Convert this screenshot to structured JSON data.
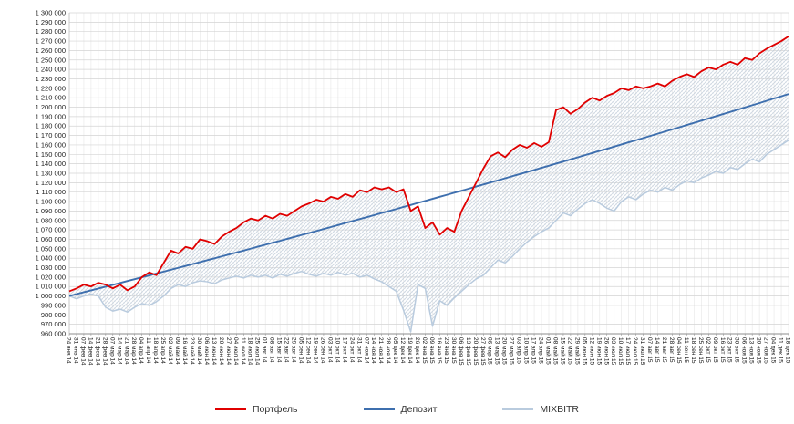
{
  "chart_data": {
    "type": "line",
    "title": "",
    "y_axis": {
      "min": 960000,
      "max": 1300000,
      "step": 10000,
      "tick_format": "space-grouped"
    },
    "grid": {
      "horizontal": true,
      "vertical": true
    },
    "legend": {
      "position": "bottom"
    },
    "band": {
      "upper": 0,
      "lower": 2,
      "style": "crosshatch",
      "color": "#c4cfda"
    },
    "x_labels": [
      "24 янв 14",
      "31 янв 14",
      "07 фев 14",
      "14 фев 14",
      "21 фев 14",
      "28 фев 14",
      "07 мар 14",
      "14 мар 14",
      "21 мар 14",
      "28 мар 14",
      "04 апр 14",
      "11 апр 14",
      "18 апр 14",
      "25 апр 14",
      "02 май 14",
      "09 май 14",
      "16 май 14",
      "23 май 14",
      "30 май 14",
      "06 июн 14",
      "13 июн 14",
      "20 июн 14",
      "27 июн 14",
      "04 июл 14",
      "11 июл 14",
      "18 июл 14",
      "25 июл 14",
      "01 авг 14",
      "08 авг 14",
      "15 авг 14",
      "22 авг 14",
      "29 авг 14",
      "05 сен 14",
      "12 сен 14",
      "19 сен 14",
      "26 сен 14",
      "03 окт 14",
      "10 окт 14",
      "17 окт 14",
      "24 окт 14",
      "31 окт 14",
      "07 ноя 14",
      "14 ноя 14",
      "21 ноя 14",
      "28 ноя 14",
      "05 дек 14",
      "12 дек 14",
      "19 дек 14",
      "26 дек 14",
      "02 янв 15",
      "09 янв 15",
      "16 янв 15",
      "23 янв 15",
      "30 янв 15",
      "06 фев 15",
      "13 фев 15",
      "20 фев 15",
      "27 фев 15",
      "06 мар 15",
      "13 мар 15",
      "20 мар 15",
      "27 мар 15",
      "03 апр 15",
      "10 апр 15",
      "17 апр 15",
      "24 апр 15",
      "01 май 15",
      "08 май 15",
      "15 май 15",
      "22 май 15",
      "29 май 15",
      "05 июн 15",
      "12 июн 15",
      "19 июн 15",
      "26 июн 15",
      "03 июл 15",
      "10 июл 15",
      "17 июл 15",
      "24 июл 15",
      "31 июл 15",
      "07 авг 15",
      "14 авг 15",
      "21 авг 15",
      "28 авг 15",
      "04 сен 15",
      "11 сен 15",
      "18 сен 15",
      "25 сен 15",
      "02 окт 15",
      "09 окт 15",
      "16 окт 15",
      "23 окт 15",
      "30 окт 15",
      "06 ноя 15",
      "13 ноя 15",
      "20 ноя 15",
      "27 ноя 15",
      "04 дек 15",
      "11 дек 15",
      "18 дек 15"
    ],
    "series": [
      {
        "name": "Портфель",
        "color": "#e00000",
        "values": [
          1005000,
          1008000,
          1012000,
          1010000,
          1014000,
          1012000,
          1008000,
          1012000,
          1006000,
          1010000,
          1020000,
          1025000,
          1022000,
          1035000,
          1048000,
          1045000,
          1052000,
          1050000,
          1060000,
          1058000,
          1055000,
          1063000,
          1068000,
          1072000,
          1078000,
          1082000,
          1080000,
          1085000,
          1082000,
          1087000,
          1085000,
          1090000,
          1095000,
          1098000,
          1102000,
          1100000,
          1105000,
          1103000,
          1108000,
          1105000,
          1112000,
          1110000,
          1115000,
          1113000,
          1115000,
          1110000,
          1113000,
          1090000,
          1095000,
          1072000,
          1078000,
          1065000,
          1072000,
          1068000,
          1090000,
          1105000,
          1120000,
          1135000,
          1148000,
          1152000,
          1147000,
          1155000,
          1160000,
          1157000,
          1162000,
          1158000,
          1163000,
          1197000,
          1200000,
          1193000,
          1198000,
          1205000,
          1210000,
          1207000,
          1212000,
          1215000,
          1220000,
          1218000,
          1222000,
          1220000,
          1222000,
          1225000,
          1222000,
          1228000,
          1232000,
          1235000,
          1232000,
          1238000,
          1242000,
          1240000,
          1245000,
          1248000,
          1245000,
          1252000,
          1250000,
          1257000,
          1262000,
          1266000,
          1270000,
          1275000
        ]
      },
      {
        "name": "Депозит",
        "color": "#3e6fae",
        "values": [
          1000000,
          1002000,
          1004000,
          1005900,
          1007900,
          1009800,
          1011800,
          1013800,
          1015800,
          1017800,
          1019800,
          1021800,
          1023800,
          1025800,
          1027800,
          1029800,
          1031800,
          1033800,
          1035900,
          1037900,
          1039900,
          1042000,
          1044000,
          1046100,
          1048100,
          1050200,
          1052300,
          1054300,
          1056400,
          1058400,
          1060500,
          1062600,
          1064700,
          1066700,
          1068800,
          1070900,
          1073000,
          1075100,
          1077300,
          1079400,
          1081500,
          1083600,
          1085700,
          1087900,
          1090000,
          1092100,
          1094300,
          1096400,
          1098600,
          1100700,
          1102900,
          1105100,
          1107200,
          1109400,
          1111500,
          1113700,
          1115900,
          1118100,
          1120300,
          1122500,
          1124700,
          1126900,
          1129100,
          1131300,
          1133500,
          1135700,
          1137900,
          1140200,
          1142400,
          1144700,
          1146900,
          1149200,
          1151400,
          1153700,
          1155900,
          1158200,
          1160500,
          1162800,
          1165000,
          1167300,
          1169600,
          1171900,
          1174200,
          1176500,
          1178800,
          1181100,
          1183400,
          1185700,
          1188100,
          1190400,
          1192700,
          1195000,
          1197400,
          1199700,
          1202100,
          1204400,
          1206800,
          1209200,
          1211500,
          1213900
        ]
      },
      {
        "name": "MIXBITR",
        "color": "#b9cbde",
        "values": [
          1000000,
          997000,
          1000000,
          1002000,
          1000000,
          988000,
          984000,
          986000,
          983000,
          988000,
          992000,
          990000,
          994000,
          1000000,
          1008000,
          1012000,
          1010000,
          1014000,
          1016000,
          1015000,
          1013000,
          1017000,
          1019000,
          1021000,
          1019000,
          1022000,
          1020000,
          1022000,
          1019000,
          1023000,
          1021000,
          1024000,
          1026000,
          1023000,
          1021000,
          1024000,
          1022000,
          1025000,
          1022000,
          1024000,
          1020000,
          1022000,
          1018000,
          1015000,
          1010000,
          1005000,
          985000,
          962000,
          1012000,
          1008000,
          968000,
          995000,
          990000,
          998000,
          1005000,
          1012000,
          1018000,
          1022000,
          1030000,
          1038000,
          1035000,
          1042000,
          1050000,
          1057000,
          1063000,
          1068000,
          1072000,
          1080000,
          1088000,
          1085000,
          1092000,
          1098000,
          1102000,
          1098000,
          1093000,
          1090000,
          1100000,
          1105000,
          1102000,
          1108000,
          1112000,
          1110000,
          1115000,
          1112000,
          1118000,
          1122000,
          1120000,
          1125000,
          1128000,
          1132000,
          1130000,
          1136000,
          1134000,
          1140000,
          1145000,
          1142000,
          1150000,
          1155000,
          1160000,
          1165000
        ]
      }
    ]
  }
}
